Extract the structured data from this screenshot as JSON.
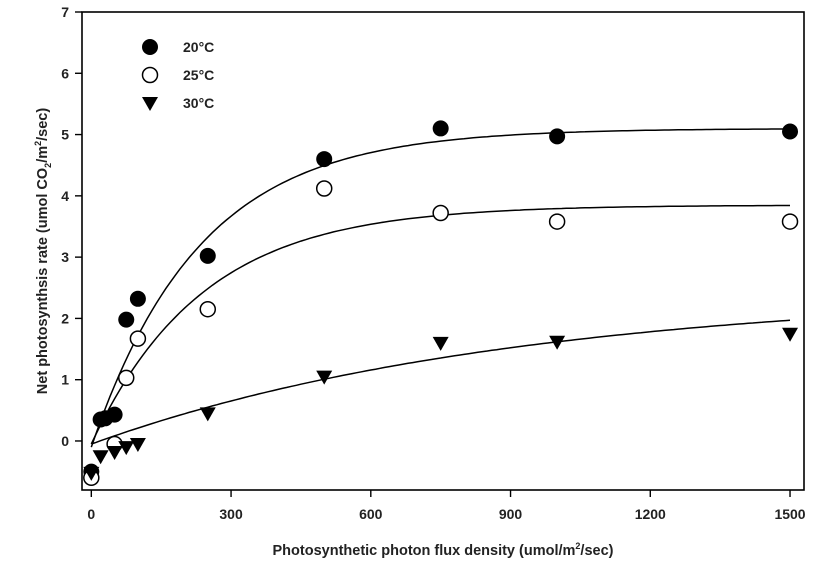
{
  "chart_data": {
    "type": "scatter",
    "xlabel": "Photosynthetic photon flux density (umol/m2/sec)",
    "ylabel": "Net photosynthsis rate (umol CO2/m2/sec)",
    "xlim": [
      -20,
      1530
    ],
    "ylim": [
      -0.8,
      7
    ],
    "xticks": [
      0,
      300,
      600,
      900,
      1200,
      1500
    ],
    "yticks": [
      0,
      1,
      2,
      3,
      4,
      5,
      6,
      7
    ],
    "grid": false,
    "legend_position": "top-left",
    "series": [
      {
        "name": "20°C",
        "marker": "filled-circle",
        "color": "#000000",
        "points": [
          [
            0,
            -0.5
          ],
          [
            20,
            0.35
          ],
          [
            30,
            0.37
          ],
          [
            50,
            0.43
          ],
          [
            75,
            1.98
          ],
          [
            100,
            2.32
          ],
          [
            250,
            3.02
          ],
          [
            500,
            4.6
          ],
          [
            750,
            5.1
          ],
          [
            1000,
            4.97
          ],
          [
            1500,
            5.05
          ]
        ],
        "fit": {
          "model": "pmax*(1-exp(-k*x)) + r",
          "pmax": 5.2,
          "k": 0.0043,
          "r": -0.1
        }
      },
      {
        "name": "25°C",
        "marker": "open-circle",
        "color": "#000000",
        "points": [
          [
            0,
            -0.6
          ],
          [
            50,
            -0.05
          ],
          [
            75,
            1.03
          ],
          [
            100,
            1.67
          ],
          [
            250,
            2.15
          ],
          [
            500,
            4.12
          ],
          [
            750,
            3.72
          ],
          [
            1000,
            3.58
          ],
          [
            1500,
            3.58
          ]
        ],
        "fit": {
          "model": "pmax*(1-exp(-k*x)) + r",
          "pmax": 3.9,
          "k": 0.0042,
          "r": -0.05
        }
      },
      {
        "name": "30°C",
        "marker": "filled-triangle-down",
        "color": "#000000",
        "points": [
          [
            0,
            -0.52
          ],
          [
            20,
            -0.25
          ],
          [
            50,
            -0.18
          ],
          [
            75,
            -0.1
          ],
          [
            100,
            -0.05
          ],
          [
            250,
            0.45
          ],
          [
            500,
            1.05
          ],
          [
            750,
            1.6
          ],
          [
            1000,
            1.62
          ],
          [
            1500,
            1.75
          ]
        ],
        "fit": {
          "model": "pmax*(1-exp(-k*x)) + r",
          "pmax": 2.5,
          "k": 0.0011,
          "r": -0.05
        }
      }
    ]
  },
  "axis_title": {
    "x_main": "Photosynthetic photon flux density (umol/m",
    "x_sup": "2",
    "x_tail": "/sec)",
    "y_main": "Net photosynthsis rate (umol CO",
    "y_sub": "2",
    "y_mid": "/m",
    "y_sup": "2",
    "y_tail": "/sec)"
  }
}
